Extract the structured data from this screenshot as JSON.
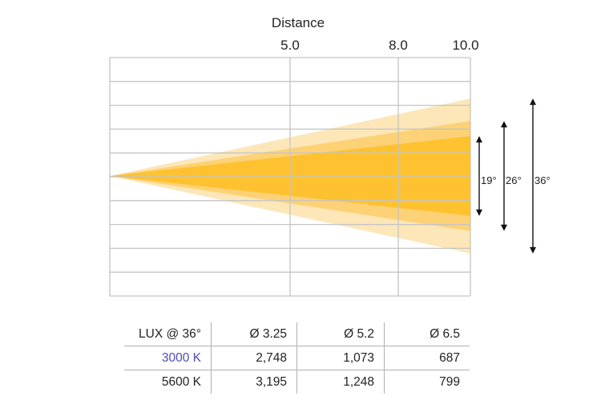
{
  "title": "Distance",
  "distance_ticks": [
    "5.0",
    "8.0",
    "10.0"
  ],
  "chart_data": {
    "type": "table",
    "distances": [
      5.0,
      8.0,
      10.0
    ],
    "x_range": [
      0,
      10
    ],
    "y_range": [
      -5,
      5
    ],
    "beam_angles_deg": [
      36,
      26,
      19
    ],
    "beam_angle_labels": [
      "19°",
      "26°",
      "36°"
    ],
    "beam_colors": [
      "#fde7b8",
      "#fdd276",
      "#fec230"
    ],
    "table": {
      "header": [
        "LUX @ 36°",
        "Ø 3.25",
        "Ø 5.2",
        "Ø 6.5"
      ],
      "rows": [
        {
          "label": "3000 K",
          "values": [
            "2,748",
            "1,073",
            "687"
          ],
          "color": "#4f4db0"
        },
        {
          "label": "5600 K",
          "values": [
            "3,195",
            "1,248",
            "799"
          ]
        }
      ]
    }
  }
}
